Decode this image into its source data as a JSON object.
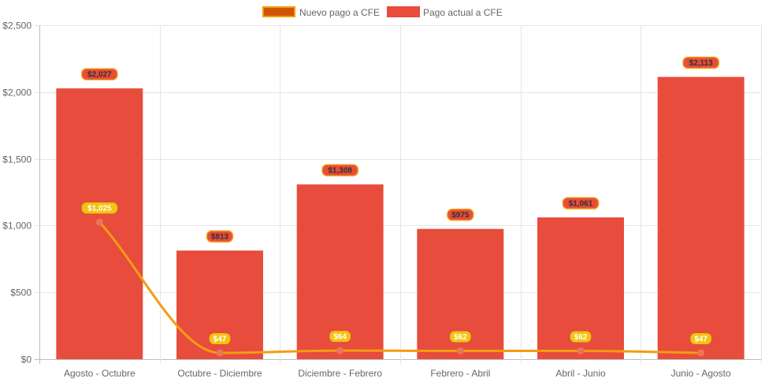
{
  "chart_data": {
    "type": "bar",
    "categories": [
      "Agosto - Octubre",
      "Octubre - Diciembre",
      "Diciembre - Febrero",
      "Febrero - Abril",
      "Abril - Junio",
      "Junio - Agosto"
    ],
    "series": [
      {
        "name": "Nuevo pago a CFE",
        "type": "line",
        "values": [
          1025,
          47,
          64,
          62,
          62,
          47
        ],
        "labels": [
          "$1,025",
          "$47",
          "$64",
          "$62",
          "$62",
          "$47"
        ],
        "color": "#f39c12",
        "legend_fill": "#d35400",
        "point_color": "#e8775a"
      },
      {
        "name": "Pago actual a CFE",
        "type": "bar",
        "values": [
          2027,
          813,
          1308,
          975,
          1061,
          2113
        ],
        "labels": [
          "$2,027",
          "$813",
          "$1,308",
          "$975",
          "$1,061",
          "$2,113"
        ],
        "color": "#e74c3c",
        "label_fill": "#e74c3c",
        "label_border": "#f39c12",
        "label_text": "#333333"
      }
    ],
    "ylim": [
      0,
      2500
    ],
    "yticks": [
      0,
      500,
      1000,
      1500,
      2000,
      2500
    ],
    "ytick_labels": [
      "$0",
      "$500",
      "$1,000",
      "$1,500",
      "$2,000",
      "$2,500"
    ],
    "grid": true,
    "legend_position": "top",
    "line_label_fill": "#f1c40f",
    "line_label_text": "#ffffff"
  }
}
